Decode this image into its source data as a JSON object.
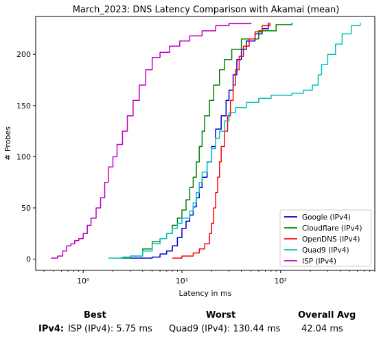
{
  "chart_data": {
    "type": "line",
    "title": "March_2023: DNS Latency Comparison with Akamai (mean)",
    "xlabel": "Latency in ms",
    "ylabel": "# Probes",
    "xscale": "log",
    "xlim": [
      0.33,
      900
    ],
    "ylim": [
      -11,
      237
    ],
    "xticks": [
      {
        "value": 1,
        "label": "10⁰"
      },
      {
        "value": 10,
        "label": "10¹"
      },
      {
        "value": 100,
        "label": "10²"
      }
    ],
    "yticks": [
      0,
      50,
      100,
      150,
      200
    ],
    "grid": false,
    "legend_position": "bottom-right",
    "series": [
      {
        "name": "Google (IPv4)",
        "color": "#0000cc",
        "points": [
          [
            3.0,
            1
          ],
          [
            5.0,
            2
          ],
          [
            6.0,
            5
          ],
          [
            7.0,
            8
          ],
          [
            8.0,
            13
          ],
          [
            9.0,
            21
          ],
          [
            10.0,
            30
          ],
          [
            11.0,
            37
          ],
          [
            12.0,
            43
          ],
          [
            13.0,
            51
          ],
          [
            14.0,
            60
          ],
          [
            15.0,
            70
          ],
          [
            16.0,
            80
          ],
          [
            18.0,
            95
          ],
          [
            20.0,
            110
          ],
          [
            22.0,
            127
          ],
          [
            25.0,
            140
          ],
          [
            28.0,
            155
          ],
          [
            30.0,
            165
          ],
          [
            33.0,
            180
          ],
          [
            36.0,
            195
          ],
          [
            40.0,
            205
          ],
          [
            45.0,
            213
          ],
          [
            55.0,
            220
          ],
          [
            65.0,
            225
          ],
          [
            75.0,
            231
          ]
        ]
      },
      {
        "name": "Cloudflare (IPv4)",
        "color": "#008000",
        "points": [
          [
            2.3,
            1
          ],
          [
            3.0,
            3
          ],
          [
            4.0,
            10
          ],
          [
            5.0,
            17
          ],
          [
            6.0,
            20
          ],
          [
            7.0,
            25
          ],
          [
            8.0,
            33
          ],
          [
            9.0,
            40
          ],
          [
            10.0,
            48
          ],
          [
            11.0,
            58
          ],
          [
            12.0,
            70
          ],
          [
            13.0,
            80
          ],
          [
            14.0,
            95
          ],
          [
            15.0,
            110
          ],
          [
            16.0,
            125
          ],
          [
            17.0,
            140
          ],
          [
            19.0,
            155
          ],
          [
            21.0,
            170
          ],
          [
            24.0,
            185
          ],
          [
            27.0,
            195
          ],
          [
            32.0,
            205
          ],
          [
            40.0,
            215
          ],
          [
            60.0,
            223
          ],
          [
            90.0,
            229
          ],
          [
            130.0,
            231
          ]
        ]
      },
      {
        "name": "OpenDNS (IPv4)",
        "color": "#ff0000",
        "points": [
          [
            8.0,
            1
          ],
          [
            10.0,
            3
          ],
          [
            13.0,
            6
          ],
          [
            15.0,
            10
          ],
          [
            17.0,
            15
          ],
          [
            19.0,
            25
          ],
          [
            20.0,
            35
          ],
          [
            21.0,
            50
          ],
          [
            22.0,
            65
          ],
          [
            23.0,
            80
          ],
          [
            24.0,
            95
          ],
          [
            25.0,
            110
          ],
          [
            27.0,
            125
          ],
          [
            29.0,
            140
          ],
          [
            31.0,
            155
          ],
          [
            33.0,
            170
          ],
          [
            35.0,
            185
          ],
          [
            38.0,
            198
          ],
          [
            42.0,
            208
          ],
          [
            48.0,
            215
          ],
          [
            55.0,
            222
          ],
          [
            65.0,
            228
          ],
          [
            78.0,
            231
          ]
        ]
      },
      {
        "name": "Quad9 (IPv4)",
        "color": "#00bfbf",
        "points": [
          [
            1.8,
            1
          ],
          [
            2.5,
            2
          ],
          [
            3.0,
            3
          ],
          [
            4.0,
            8
          ],
          [
            5.0,
            15
          ],
          [
            6.0,
            20
          ],
          [
            7.0,
            25
          ],
          [
            8.0,
            30
          ],
          [
            9.0,
            35
          ],
          [
            10.0,
            40
          ],
          [
            12.0,
            47
          ],
          [
            13.0,
            55
          ],
          [
            14.0,
            65
          ],
          [
            15.0,
            75
          ],
          [
            16.0,
            85
          ],
          [
            18.0,
            95
          ],
          [
            20.0,
            108
          ],
          [
            22.0,
            118
          ],
          [
            24.0,
            125
          ],
          [
            27.0,
            135
          ],
          [
            30.0,
            143
          ],
          [
            35.0,
            148
          ],
          [
            45.0,
            153
          ],
          [
            60.0,
            157
          ],
          [
            80.0,
            160
          ],
          [
            130.0,
            162
          ],
          [
            170.0,
            165
          ],
          [
            210.0,
            170
          ],
          [
            240.0,
            180
          ],
          [
            260.0,
            190
          ],
          [
            300.0,
            200
          ],
          [
            360.0,
            210
          ],
          [
            420.0,
            220
          ],
          [
            520.0,
            228
          ],
          [
            640.0,
            231
          ]
        ]
      },
      {
        "name": "ISP (IPv4)",
        "color": "#bf00bf",
        "points": [
          [
            0.47,
            1
          ],
          [
            0.55,
            3
          ],
          [
            0.62,
            8
          ],
          [
            0.68,
            13
          ],
          [
            0.75,
            15
          ],
          [
            0.82,
            18
          ],
          [
            0.9,
            20
          ],
          [
            1.0,
            25
          ],
          [
            1.1,
            33
          ],
          [
            1.2,
            40
          ],
          [
            1.35,
            50
          ],
          [
            1.5,
            60
          ],
          [
            1.65,
            75
          ],
          [
            1.8,
            90
          ],
          [
            2.0,
            100
          ],
          [
            2.2,
            112
          ],
          [
            2.5,
            125
          ],
          [
            2.8,
            140
          ],
          [
            3.2,
            155
          ],
          [
            3.7,
            170
          ],
          [
            4.3,
            185
          ],
          [
            5.0,
            197
          ],
          [
            6.0,
            202
          ],
          [
            7.5,
            208
          ],
          [
            9.5,
            213
          ],
          [
            12.0,
            218
          ],
          [
            16.0,
            223
          ],
          [
            22.0,
            228
          ],
          [
            30.0,
            230
          ],
          [
            50.0,
            231
          ]
        ]
      }
    ]
  },
  "summary": {
    "best_header": "Best",
    "worst_header": "Worst",
    "overall_header": "Overall Avg",
    "row_label": "IPv4",
    "row_colon": ":",
    "best_value": "ISP (IPv4): 5.75 ms",
    "worst_value": "Quad9 (IPv4): 130.44 ms",
    "overall_value": "42.04 ms"
  }
}
